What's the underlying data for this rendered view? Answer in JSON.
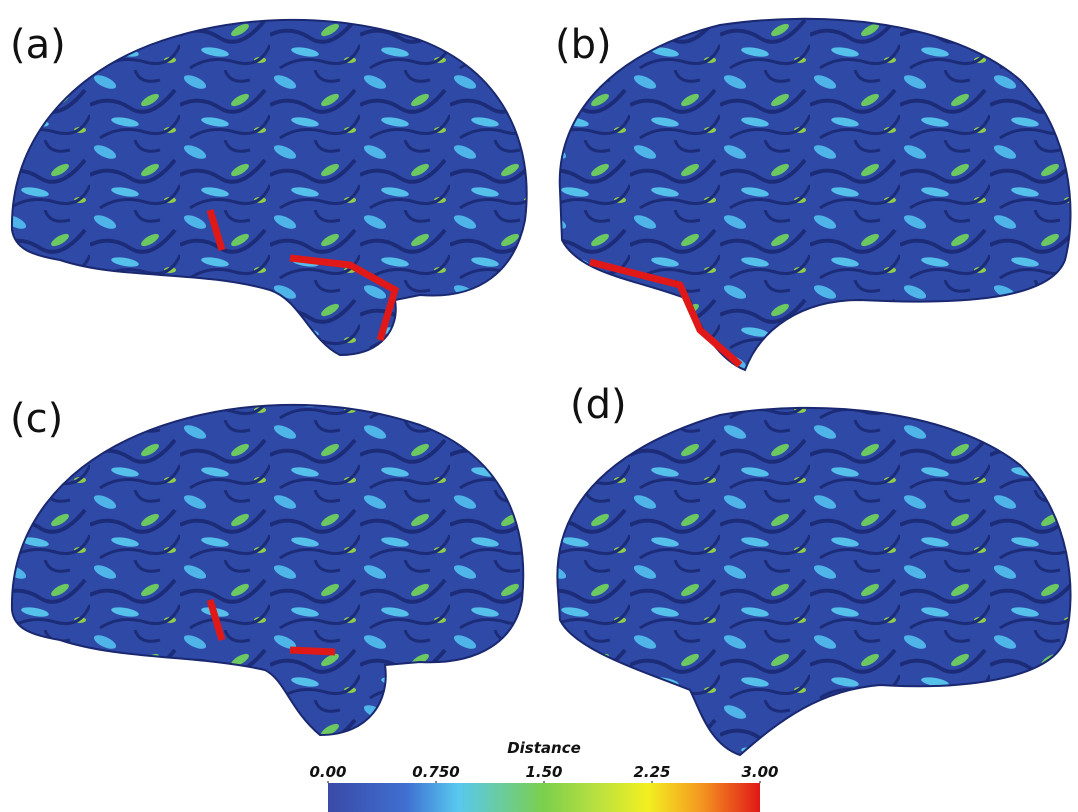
{
  "panels": [
    {
      "label": "(a)"
    },
    {
      "label": "(b)"
    },
    {
      "label": "(c)"
    },
    {
      "label": "(d)"
    }
  ],
  "colorbar": {
    "title": "Distance",
    "range": [
      0,
      3
    ],
    "ticks": [
      {
        "value": 0,
        "label": "0.00"
      },
      {
        "value": 0.75,
        "label": "0.750"
      },
      {
        "value": 1.5,
        "label": "1.50"
      },
      {
        "value": 2.25,
        "label": "2.25"
      },
      {
        "value": 3,
        "label": "3.00"
      }
    ]
  }
}
